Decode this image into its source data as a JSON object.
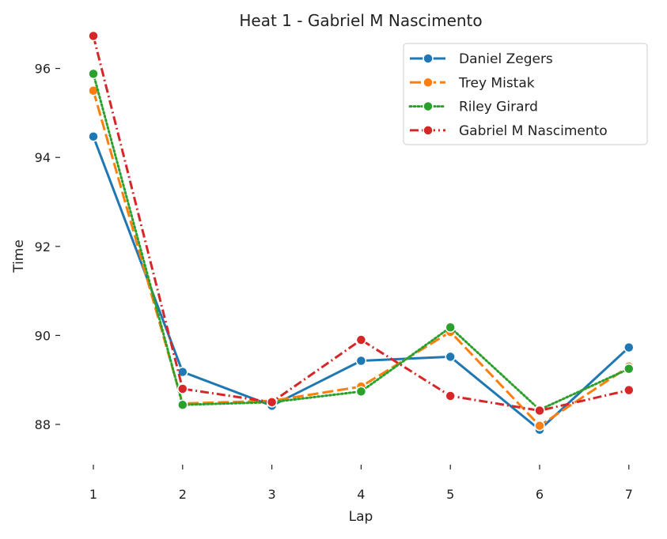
{
  "chart_data": {
    "type": "line",
    "title": "Heat 1 - Gabriel M Nascimento",
    "xlabel": "Lap",
    "ylabel": "Time",
    "x": [
      1,
      2,
      3,
      4,
      5,
      6,
      7
    ],
    "xticks": [
      "1",
      "2",
      "3",
      "4",
      "5",
      "6",
      "7"
    ],
    "yticks": [
      "88",
      "90",
      "92",
      "94",
      "96"
    ],
    "ylim": [
      87.0,
      96.8
    ],
    "grid": false,
    "legend_position": "top-right",
    "series": [
      {
        "name": "Daniel Zegers",
        "color": "#1f77b4",
        "dash": "solid",
        "values": [
          94.47,
          89.18,
          88.42,
          89.43,
          89.52,
          87.88,
          89.73
        ]
      },
      {
        "name": "Trey Mistak",
        "color": "#ff7f0e",
        "dash": "dashed",
        "values": [
          95.5,
          88.47,
          88.53,
          88.85,
          90.08,
          87.97,
          89.3
        ]
      },
      {
        "name": "Riley Girard",
        "color": "#2ca02c",
        "dash": "dotted",
        "values": [
          95.88,
          88.44,
          88.5,
          88.74,
          90.18,
          88.33,
          89.25
        ]
      },
      {
        "name": "Gabriel M Nascimento",
        "color": "#d62728",
        "dash": "dashdot",
        "values": [
          96.73,
          88.8,
          88.5,
          89.9,
          88.64,
          88.31,
          88.77
        ]
      }
    ]
  }
}
